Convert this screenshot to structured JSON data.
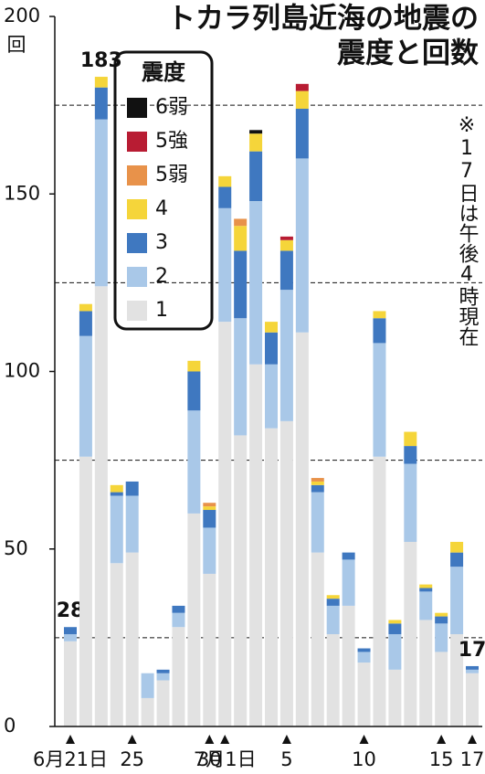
{
  "chart_data": {
    "type": "stacked-bar",
    "title": [
      "トカラ列島近海の地震の",
      "震度と回数"
    ],
    "y_unit": "回",
    "note": "※17日は午後4時現在",
    "legend_title": "震度",
    "categories": [
      "6月21日",
      null,
      null,
      null,
      "25",
      null,
      null,
      null,
      null,
      "30",
      "7月1日",
      null,
      null,
      null,
      "5",
      null,
      null,
      null,
      null,
      "10",
      null,
      null,
      null,
      null,
      "15",
      null,
      "17"
    ],
    "series": [
      {
        "name": "1",
        "color": "#e2e2e2",
        "values": [
          24,
          76,
          124,
          46,
          49,
          8,
          13,
          28,
          60,
          43,
          114,
          82,
          102,
          84,
          86,
          111,
          49,
          26,
          34,
          18,
          76,
          16,
          52,
          30,
          21,
          26,
          15
        ]
      },
      {
        "name": "2",
        "color": "#a9c8e8",
        "values": [
          2,
          34,
          47,
          19,
          16,
          7,
          2,
          4,
          29,
          13,
          32,
          33,
          46,
          18,
          37,
          49,
          17,
          8,
          13,
          3,
          32,
          10,
          22,
          8,
          8,
          19,
          1
        ]
      },
      {
        "name": "3",
        "color": "#3f78c0",
        "values": [
          2,
          7,
          9,
          1,
          4,
          0,
          1,
          2,
          11,
          5,
          6,
          19,
          14,
          9,
          11,
          14,
          2,
          2,
          2,
          1,
          7,
          3,
          5,
          1,
          2,
          4,
          1
        ]
      },
      {
        "name": "4",
        "color": "#f5d53a",
        "values": [
          0,
          2,
          3,
          2,
          0,
          0,
          0,
          0,
          3,
          1,
          3,
          7,
          5,
          3,
          3,
          5,
          1,
          1,
          0,
          0,
          2,
          1,
          4,
          1,
          1,
          3,
          0
        ]
      },
      {
        "name": "5弱",
        "color": "#e8924a",
        "values": [
          0,
          0,
          0,
          0,
          0,
          0,
          0,
          0,
          0,
          1,
          0,
          2,
          0,
          0,
          0,
          0,
          1,
          0,
          0,
          0,
          0,
          0,
          0,
          0,
          0,
          0,
          0
        ]
      },
      {
        "name": "5強",
        "color": "#b81c33",
        "values": [
          0,
          0,
          0,
          0,
          0,
          0,
          0,
          0,
          0,
          0,
          0,
          0,
          0,
          0,
          1,
          2,
          0,
          0,
          0,
          0,
          0,
          0,
          0,
          0,
          0,
          0,
          0
        ]
      },
      {
        "name": "6弱",
        "color": "#111111",
        "values": [
          0,
          0,
          0,
          0,
          0,
          0,
          0,
          0,
          0,
          0,
          0,
          0,
          1,
          0,
          0,
          0,
          0,
          0,
          0,
          0,
          0,
          0,
          0,
          0,
          0,
          0,
          0
        ]
      }
    ],
    "total_labels": [
      28,
      null,
      183,
      null,
      null,
      null,
      null,
      null,
      null,
      null,
      null,
      null,
      null,
      null,
      null,
      null,
      null,
      null,
      null,
      null,
      null,
      null,
      null,
      null,
      null,
      null,
      17
    ],
    "ylim": [
      0,
      200
    ],
    "yticks": [
      0,
      50,
      100,
      150,
      200
    ],
    "grid_lines": [
      25,
      75,
      125,
      175
    ]
  }
}
